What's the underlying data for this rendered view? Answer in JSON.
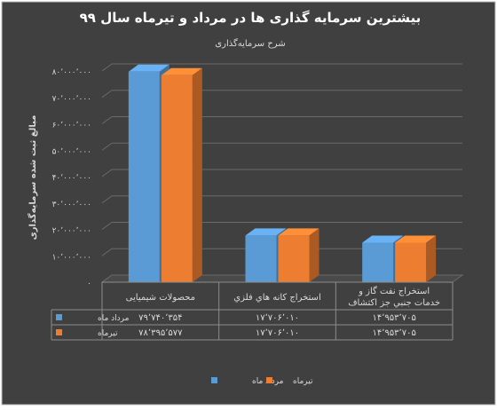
{
  "chart_data": {
    "type": "bar",
    "title": "بیشترین سرمایه گذاری ها در مرداد و تیرماه سال ۹۹",
    "xlabel": "شرح سرمایه‌گذاری",
    "ylabel": "مبالغ ثبت شده سرمایه‌گذاری",
    "ylim": [
      0,
      80000000
    ],
    "yticks": [
      0,
      10000000,
      20000000,
      30000000,
      40000000,
      50000000,
      60000000,
      70000000,
      80000000
    ],
    "ytick_labels": [
      "۰",
      "۱۰٬۰۰۰٬۰۰۰",
      "۲۰٬۰۰۰٬۰۰۰",
      "۳۰٬۰۰۰٬۰۰۰",
      "۴۰٬۰۰۰٬۰۰۰",
      "۵۰٬۰۰۰٬۰۰۰",
      "۶۰٬۰۰۰٬۰۰۰",
      "۷۰٬۰۰۰٬۰۰۰",
      "۸۰٬۰۰۰٬۰۰۰"
    ],
    "categories": [
      [
        "محصولات شیمیایی"
      ],
      [
        "استخراج کانه هاي فلزي"
      ],
      [
        "استخراج نفت گاز و",
        "خدمات جنبي جز اكتشاف"
      ]
    ],
    "series": [
      {
        "name": "مرداد ماه",
        "color": "#5B9BD5",
        "values": [
          79740354,
          17706010,
          14953705
        ],
        "value_labels": [
          "۷۹٬۷۴۰٬۳۵۴",
          "۱۷٬۷۰۶٬۰۱۰",
          "۱۴٬۹۵۳٬۷۰۵"
        ]
      },
      {
        "name": "تیرماه",
        "color": "#ED7D31",
        "values": [
          78395577,
          17706010,
          14953705
        ],
        "value_labels": [
          "۷۸٬۳۹۵٬۵۷۷",
          "۱۷٬۷۰۶٬۰۱۰",
          "۱۴٬۹۵۳٬۷۰۵"
        ]
      }
    ],
    "grid": true,
    "data_table": true,
    "legend_position": "bottom",
    "background": "#404040",
    "text_color": "#D9D9D9"
  }
}
